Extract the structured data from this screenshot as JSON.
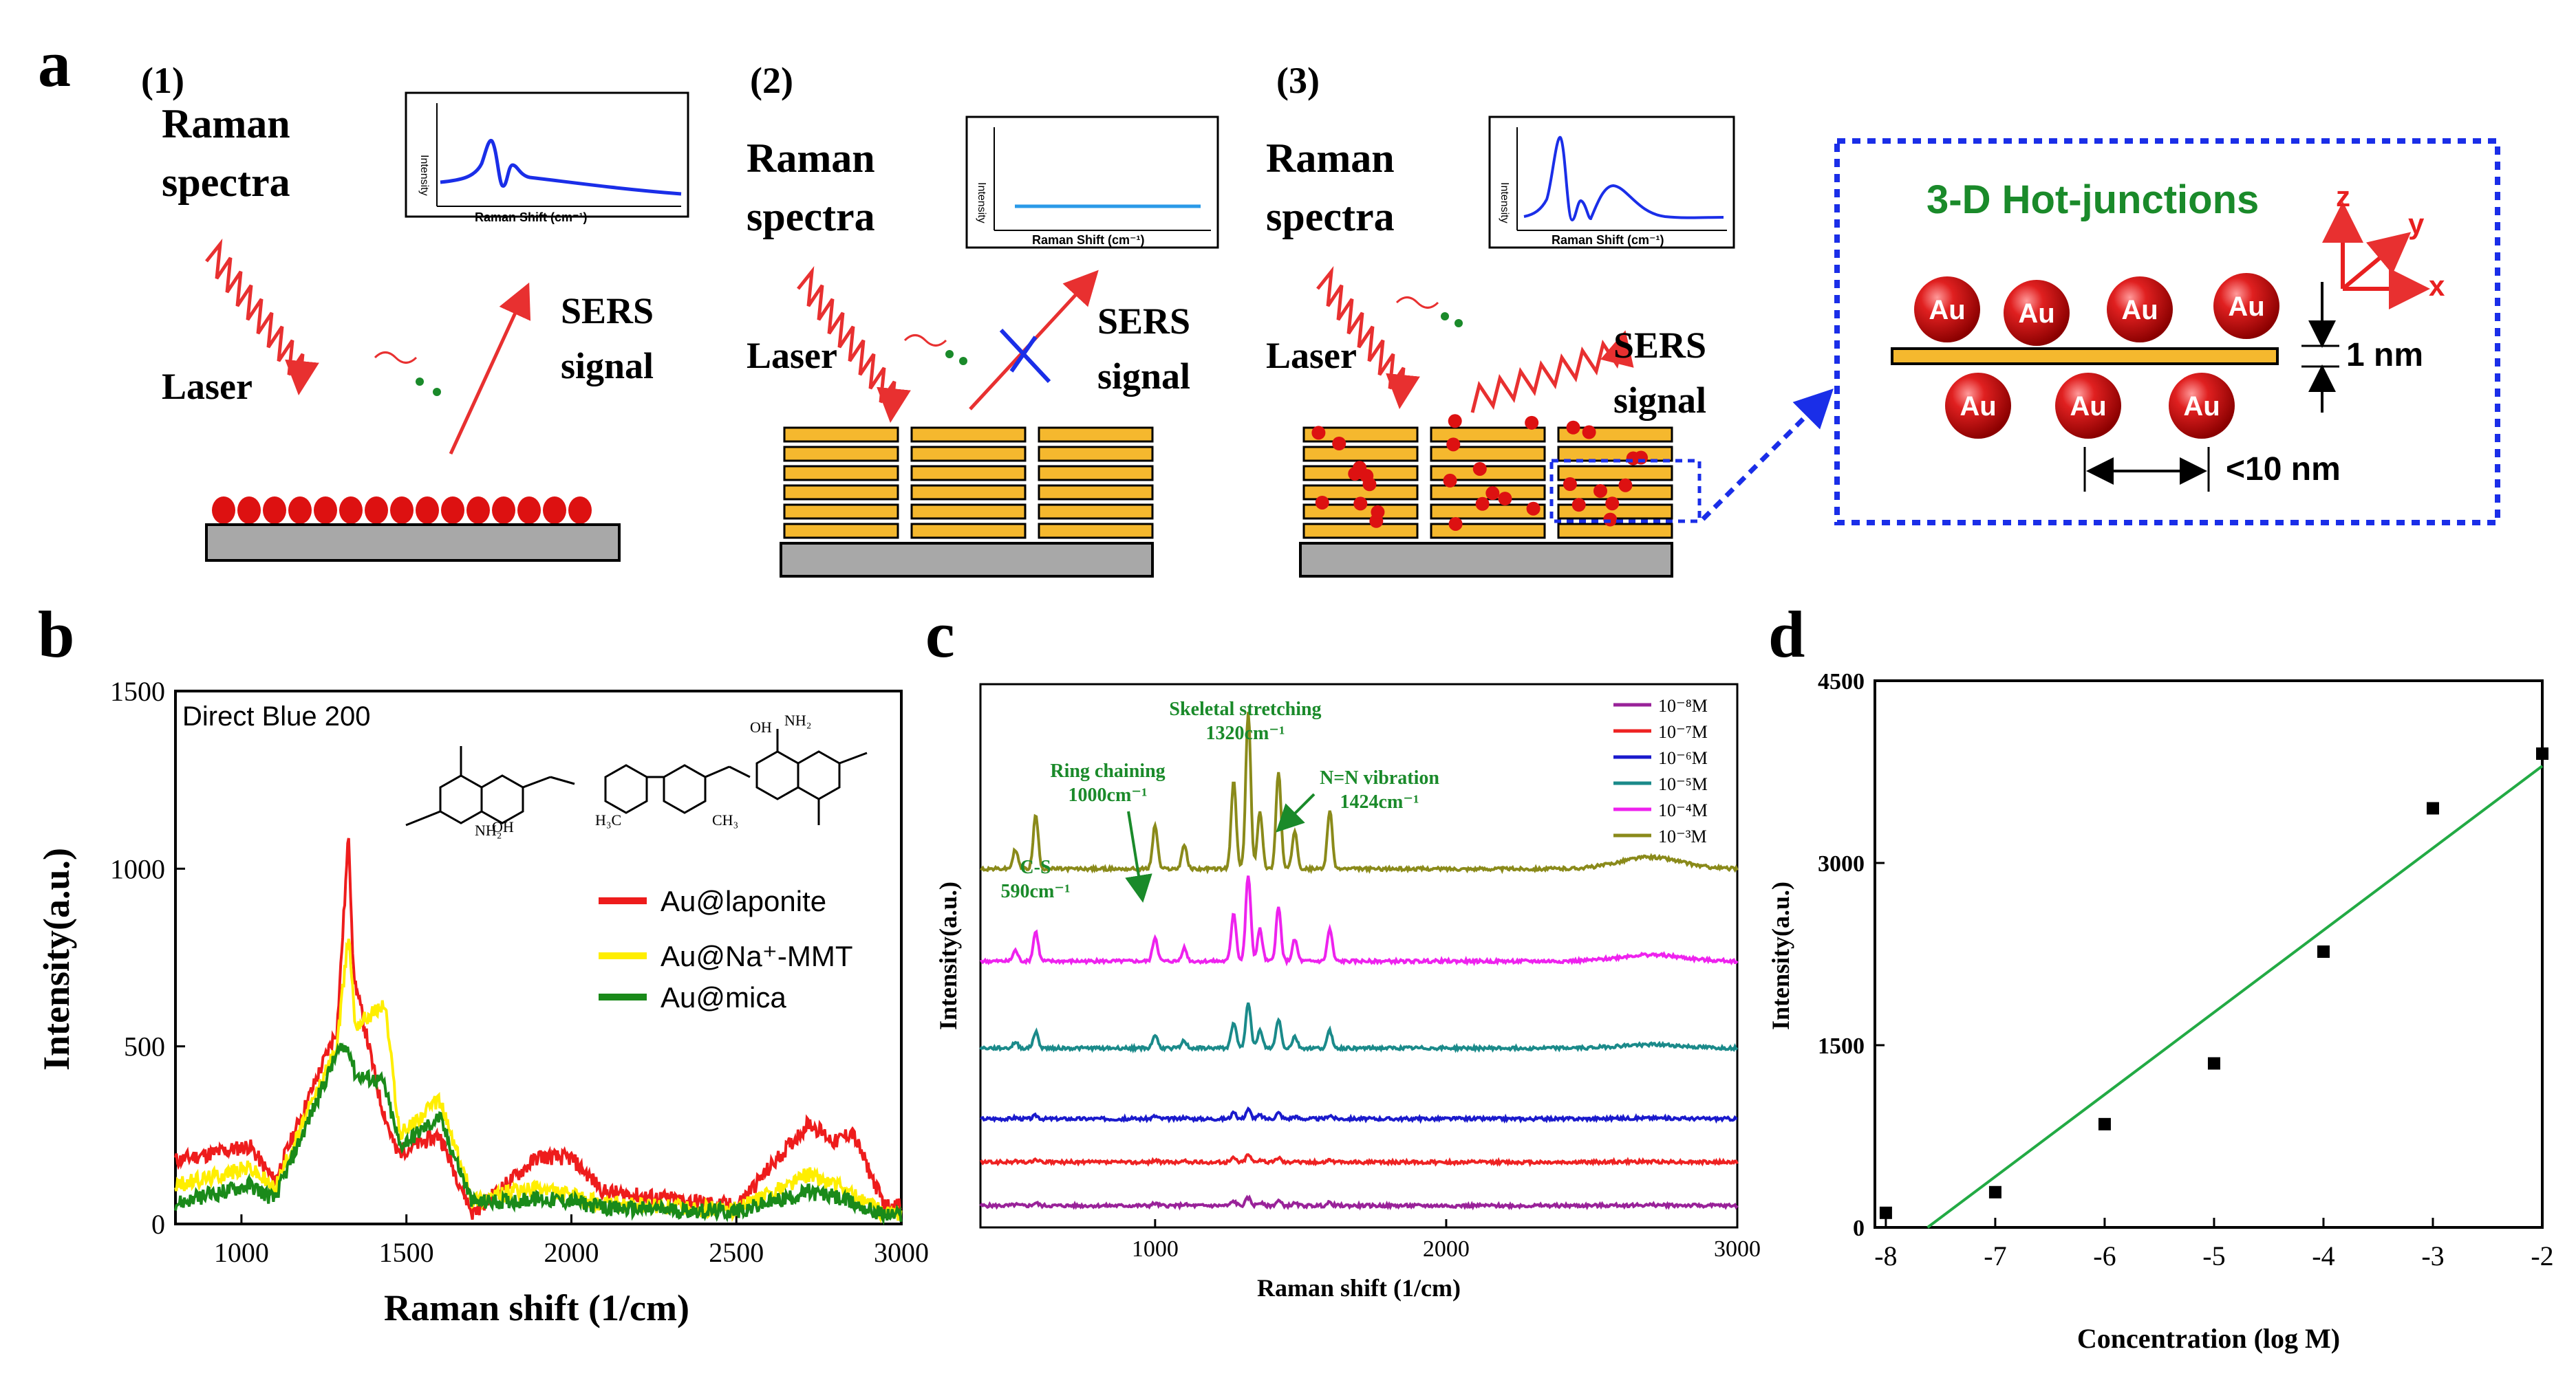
{
  "panel_letters": {
    "a": "a",
    "b": "b",
    "c": "c",
    "d": "d"
  },
  "schematic": {
    "cases": [
      {
        "number": "(1)",
        "title_line1": "Raman",
        "title_line2": "spectra",
        "laser": "Laser",
        "signal_line1": "SERS",
        "signal_line2": "signal",
        "inset_ylabel": "Intensity",
        "inset_xlabel": "Raman Shift (cm⁻¹)"
      },
      {
        "number": "(2)",
        "title_line1": "Raman",
        "title_line2": "spectra",
        "laser": "Laser",
        "signal_line1": "SERS",
        "signal_line2": "signal",
        "inset_ylabel": "Intensity",
        "inset_xlabel": "Raman Shift (cm⁻¹)"
      },
      {
        "number": "(3)",
        "title_line1": "Raman",
        "title_line2": "spectra",
        "laser": "Laser",
        "signal_line1": "SERS",
        "signal_line2": "signal",
        "inset_ylabel": "Intensity",
        "inset_xlabel": "Raman Shift (cm⁻¹)"
      }
    ],
    "hot_junctions": {
      "title": "3-D Hot-junctions",
      "particle_label": "Au",
      "axis_z": "z",
      "axis_y": "y",
      "axis_x": "x",
      "gap_label": "1 nm",
      "spacing_label": "<10 nm"
    },
    "colors": {
      "laser": "#e83030",
      "particle": "#dd1111",
      "clay": "#f5b82e",
      "substrate": "#a8a8a8",
      "dashed": "#1a2ee8",
      "title_green": "#1a8a2a",
      "inset_line": "#1a2ee8"
    }
  },
  "chart_data": [
    {
      "panel": "b",
      "type": "line",
      "title": "Direct Blue 200",
      "xlabel": "Raman shift (1/cm)",
      "ylabel": "Intensity(a.u.)",
      "xlim": [
        800,
        3000
      ],
      "ylim": [
        0,
        1500
      ],
      "xticks": [
        1000,
        1500,
        2000,
        2500,
        3000
      ],
      "yticks": [
        0,
        500,
        1000,
        1500
      ],
      "legend_position": "center-right",
      "series": [
        {
          "name": "Au@laponite",
          "color": "#ee1c1c",
          "peaks": [
            [
              810,
              180
            ],
            [
              1025,
              220
            ],
            [
              1100,
              120
            ],
            [
              1290,
              550
            ],
            [
              1325,
              1100
            ],
            [
              1340,
              700
            ],
            [
              1420,
              350
            ],
            [
              1470,
              200
            ],
            [
              1600,
              250
            ],
            [
              1700,
              30
            ],
            [
              1900,
              190
            ],
            [
              2000,
              185
            ],
            [
              2100,
              90
            ],
            [
              2500,
              50
            ],
            [
              2720,
              285
            ],
            [
              2800,
              230
            ],
            [
              2850,
              260
            ],
            [
              2950,
              50
            ]
          ]
        },
        {
          "name": "Au@Na⁺-MMT",
          "color": "#ffee00",
          "peaks": [
            [
              810,
              110
            ],
            [
              1025,
              160
            ],
            [
              1100,
              100
            ],
            [
              1290,
              500
            ],
            [
              1325,
              820
            ],
            [
              1345,
              560
            ],
            [
              1435,
              620
            ],
            [
              1480,
              250
            ],
            [
              1600,
              350
            ],
            [
              1700,
              70
            ],
            [
              1900,
              100
            ],
            [
              2000,
              80
            ],
            [
              2100,
              55
            ],
            [
              2500,
              40
            ],
            [
              2720,
              140
            ],
            [
              2800,
              110
            ],
            [
              2950,
              30
            ]
          ]
        },
        {
          "name": "Au@mica",
          "color": "#1a8a1a",
          "peaks": [
            [
              810,
              60
            ],
            [
              1025,
              110
            ],
            [
              1100,
              70
            ],
            [
              1290,
              480
            ],
            [
              1325,
              500
            ],
            [
              1345,
              420
            ],
            [
              1430,
              400
            ],
            [
              1480,
              220
            ],
            [
              1600,
              300
            ],
            [
              1700,
              60
            ],
            [
              1900,
              70
            ],
            [
              2000,
              65
            ],
            [
              2100,
              45
            ],
            [
              2500,
              35
            ],
            [
              2720,
              90
            ],
            [
              2800,
              75
            ],
            [
              2950,
              25
            ]
          ]
        }
      ],
      "molecule_labels": [
        "NH₂",
        "OH",
        "H₃C",
        "CH₃",
        "OH",
        "NH₂"
      ]
    },
    {
      "panel": "c",
      "type": "line",
      "xlabel": "Raman shift (1/cm)",
      "ylabel": "Intensity(a.u.)",
      "xlim": [
        400,
        3000
      ],
      "xticks": [
        1000,
        2000,
        3000
      ],
      "series": [
        {
          "name": "10⁻⁸M",
          "color": "#992299",
          "offset": 0.04,
          "scale": 0.05
        },
        {
          "name": "10⁻⁷M",
          "color": "#ee2222",
          "offset": 0.12,
          "scale": 0.05
        },
        {
          "name": "10⁻⁶M",
          "color": "#1a1acc",
          "offset": 0.2,
          "scale": 0.06
        },
        {
          "name": "10⁻⁵M",
          "color": "#1a8a8a",
          "offset": 0.33,
          "scale": 0.3
        },
        {
          "name": "10⁻⁴M",
          "color": "#ee22ee",
          "offset": 0.49,
          "scale": 0.55
        },
        {
          "name": "10⁻³M",
          "color": "#8a8a1a",
          "offset": 0.66,
          "scale": 1.0
        }
      ],
      "annotations": [
        {
          "line1": "Skeletal stretching",
          "line2": "1320cm⁻¹"
        },
        {
          "line1": "Ring chaining",
          "line2": "1000cm⁻¹"
        },
        {
          "line1": "N=N vibration",
          "line2": "1424cm⁻¹"
        },
        {
          "line1": "C-S",
          "line2": "590cm⁻¹"
        }
      ]
    },
    {
      "panel": "d",
      "type": "scatter",
      "xlabel": "Concentration (log M)",
      "ylabel": "Intensity(a.u.)",
      "xlim": [
        -8.1,
        -2
      ],
      "ylim": [
        0,
        4500
      ],
      "xticks": [
        -8,
        -7,
        -6,
        -5,
        -4,
        -3,
        -2
      ],
      "yticks": [
        0,
        1500,
        3000,
        4500
      ],
      "points": [
        [
          -8,
          120
        ],
        [
          -7,
          290
        ],
        [
          -6,
          850
        ],
        [
          -5,
          1350
        ],
        [
          -4,
          2270
        ],
        [
          -3,
          3450
        ],
        [
          -2,
          3900
        ]
      ],
      "fit": {
        "slope": 676,
        "intercept": 5150,
        "color": "#22aa44"
      }
    }
  ]
}
